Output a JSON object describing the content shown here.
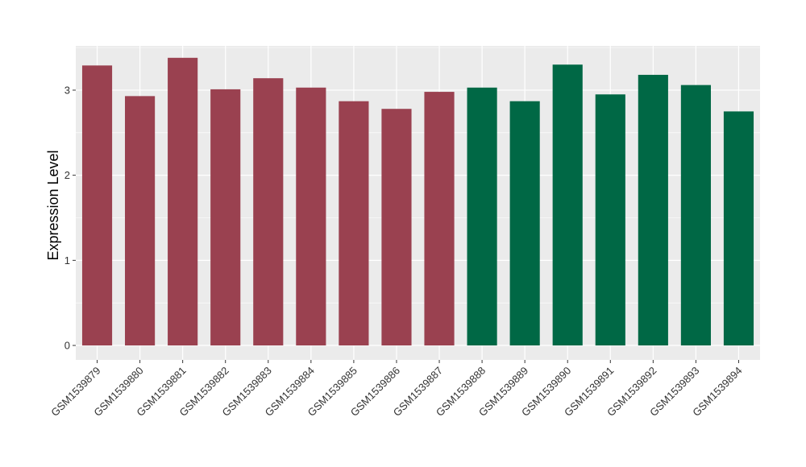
{
  "chart_data": {
    "type": "bar",
    "title": "",
    "xlabel": "",
    "ylabel": "Expression Level",
    "ylim": [
      -0.17,
      3.52
    ],
    "yticks": [
      0,
      1,
      2,
      3
    ],
    "yticks_text": [
      "0",
      "1",
      "2",
      "3"
    ],
    "grid": true,
    "legend": "none",
    "categories": [
      "GSM1539879",
      "GSM1539880",
      "GSM1539881",
      "GSM1539882",
      "GSM1539883",
      "GSM1539884",
      "GSM1539885",
      "GSM1539886",
      "GSM1539887",
      "GSM1539888",
      "GSM1539889",
      "GSM1539890",
      "GSM1539891",
      "GSM1539892",
      "GSM1539893",
      "GSM1539894"
    ],
    "values": [
      3.29,
      2.93,
      3.38,
      3.01,
      3.14,
      3.03,
      2.87,
      2.78,
      2.98,
      3.03,
      2.87,
      3.3,
      2.95,
      3.18,
      3.06,
      2.75
    ],
    "bar_colors": [
      "#9a4150",
      "#9a4150",
      "#9a4150",
      "#9a4150",
      "#9a4150",
      "#9a4150",
      "#9a4150",
      "#9a4150",
      "#9a4150",
      "#006845",
      "#006845",
      "#006845",
      "#006845",
      "#006845",
      "#006845",
      "#006845"
    ],
    "panel_background": "#ebebeb",
    "grid_color": "#ffffff"
  }
}
